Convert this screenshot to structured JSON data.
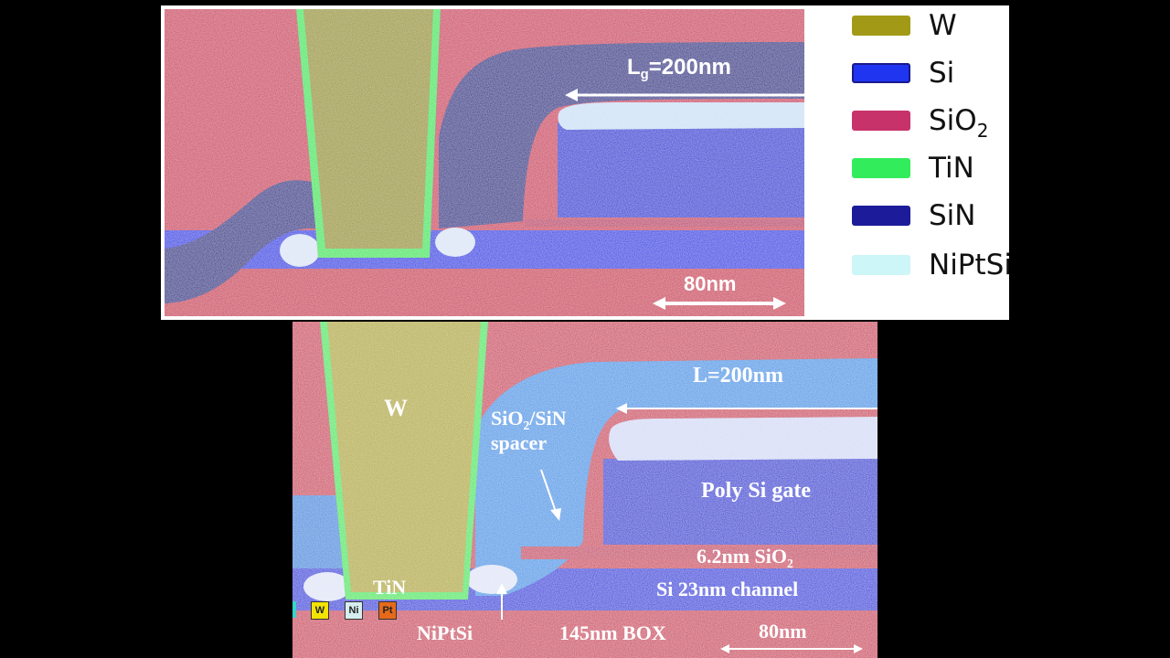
{
  "top_panel": {
    "gate_length_label": {
      "prefix": "L",
      "subscript": "g",
      "value": "=200nm"
    },
    "scale_bar_label": "80nm",
    "legend": [
      {
        "id": "w",
        "label": "W",
        "color": "#a29a17"
      },
      {
        "id": "si",
        "label": "Si",
        "color": "#1f35ef"
      },
      {
        "id": "sio2",
        "label": "SiO",
        "subscript": "2",
        "color": "#c8326a"
      },
      {
        "id": "tin",
        "label": "TiN",
        "color": "#33ec5c"
      },
      {
        "id": "sin",
        "label": "SiN",
        "color": "#1c1c9a"
      },
      {
        "id": "niptsi",
        "label": "NiPtSi",
        "color": "#ccf6f7"
      }
    ]
  },
  "bottom_panel": {
    "gate_length_label": "L=200nm",
    "w_label": "W",
    "spacer_label": {
      "line1_prefix": "SiO",
      "line1_sub": "2",
      "line1_suffix": "/SiN",
      "line2": "spacer"
    },
    "gate_label": "Poly Si gate",
    "oxide_label": {
      "prefix": "6.2nm SiO",
      "subscript": "2"
    },
    "channel_label": "Si 23nm channel",
    "tin_label": "TiN",
    "niptsi_label": "NiPtSi",
    "box_label": "145nm BOX",
    "scale_bar_label": "80nm",
    "element_tags": [
      {
        "label": "W",
        "color": "#f2e400"
      },
      {
        "label": "Ni",
        "color": "#d7eef0"
      },
      {
        "label": "Pt",
        "color": "#e66a1a"
      }
    ]
  }
}
